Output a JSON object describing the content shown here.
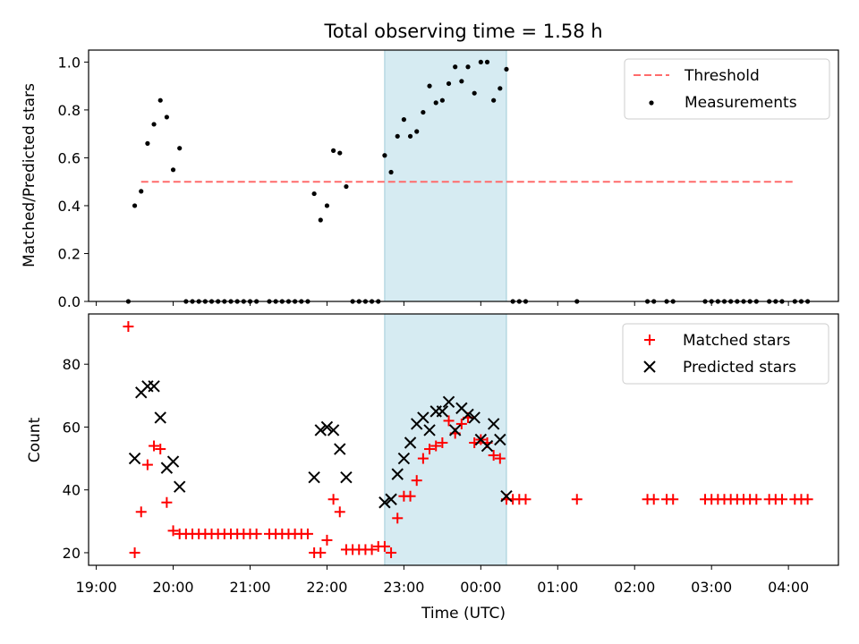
{
  "chart_data": [
    {
      "type": "scatter",
      "title": "Total observing time = 1.58 h",
      "xlabel": "",
      "ylabel": "Matched/Predicted stars",
      "ylim": [
        0,
        1.05
      ],
      "yticks": [
        "0.0",
        "0.2",
        "0.4",
        "0.6",
        "0.8",
        "1.0"
      ],
      "ytick_values": [
        0,
        0.2,
        0.4,
        0.6,
        0.8,
        1.0
      ],
      "shaded_interval": [
        "22:45",
        "00:20"
      ],
      "legend_position": "upper right",
      "threshold": {
        "name": "Threshold",
        "value": 0.5,
        "x_range": [
          "19:35",
          "04:05"
        ],
        "color": "#ff6b6b"
      },
      "series": [
        {
          "name": "Measurements",
          "color": "#000000",
          "points": [
            [
              "19:25",
              0.0
            ],
            [
              "19:30",
              0.4
            ],
            [
              "19:35",
              0.46
            ],
            [
              "19:40",
              0.66
            ],
            [
              "19:45",
              0.74
            ],
            [
              "19:50",
              0.84
            ],
            [
              "19:55",
              0.77
            ],
            [
              "20:00",
              0.55
            ],
            [
              "20:05",
              0.64
            ],
            [
              "20:10",
              0.0
            ],
            [
              "20:15",
              0.0
            ],
            [
              "20:20",
              0.0
            ],
            [
              "20:25",
              0.0
            ],
            [
              "20:30",
              0.0
            ],
            [
              "20:35",
              0.0
            ],
            [
              "20:40",
              0.0
            ],
            [
              "20:45",
              0.0
            ],
            [
              "20:50",
              0.0
            ],
            [
              "20:55",
              0.0
            ],
            [
              "21:00",
              0.0
            ],
            [
              "21:05",
              0.0
            ],
            [
              "21:15",
              0.0
            ],
            [
              "21:20",
              0.0
            ],
            [
              "21:25",
              0.0
            ],
            [
              "21:30",
              0.0
            ],
            [
              "21:35",
              0.0
            ],
            [
              "21:40",
              0.0
            ],
            [
              "21:45",
              0.0
            ],
            [
              "21:50",
              0.45
            ],
            [
              "21:55",
              0.34
            ],
            [
              "22:00",
              0.4
            ],
            [
              "22:05",
              0.63
            ],
            [
              "22:10",
              0.62
            ],
            [
              "22:15",
              0.48
            ],
            [
              "22:20",
              0.0
            ],
            [
              "22:25",
              0.0
            ],
            [
              "22:30",
              0.0
            ],
            [
              "22:35",
              0.0
            ],
            [
              "22:40",
              0.0
            ],
            [
              "22:45",
              0.61
            ],
            [
              "22:50",
              0.54
            ],
            [
              "22:55",
              0.69
            ],
            [
              "23:00",
              0.76
            ],
            [
              "23:05",
              0.69
            ],
            [
              "23:10",
              0.71
            ],
            [
              "23:15",
              0.79
            ],
            [
              "23:20",
              0.9
            ],
            [
              "23:25",
              0.83
            ],
            [
              "23:30",
              0.84
            ],
            [
              "23:35",
              0.91
            ],
            [
              "23:40",
              0.98
            ],
            [
              "23:45",
              0.92
            ],
            [
              "23:50",
              0.98
            ],
            [
              "23:55",
              0.87
            ],
            [
              "00:00",
              1.0
            ],
            [
              "00:05",
              1.0
            ],
            [
              "00:10",
              0.84
            ],
            [
              "00:15",
              0.89
            ],
            [
              "00:20",
              0.97
            ],
            [
              "00:25",
              0.0
            ],
            [
              "00:30",
              0.0
            ],
            [
              "00:35",
              0.0
            ],
            [
              "01:15",
              0.0
            ],
            [
              "02:10",
              0.0
            ],
            [
              "02:15",
              0.0
            ],
            [
              "02:25",
              0.0
            ],
            [
              "02:30",
              0.0
            ],
            [
              "02:55",
              0.0
            ],
            [
              "03:00",
              0.0
            ],
            [
              "03:05",
              0.0
            ],
            [
              "03:10",
              0.0
            ],
            [
              "03:15",
              0.0
            ],
            [
              "03:20",
              0.0
            ],
            [
              "03:25",
              0.0
            ],
            [
              "03:30",
              0.0
            ],
            [
              "03:35",
              0.0
            ],
            [
              "03:45",
              0.0
            ],
            [
              "03:50",
              0.0
            ],
            [
              "03:55",
              0.0
            ],
            [
              "04:05",
              0.0
            ],
            [
              "04:10",
              0.0
            ],
            [
              "04:15",
              0.0
            ]
          ]
        }
      ]
    },
    {
      "type": "scatter",
      "title": "",
      "xlabel": "Time (UTC)",
      "ylabel": "Count",
      "ylim": [
        16,
        96
      ],
      "yticks": [
        "20",
        "40",
        "60",
        "80"
      ],
      "ytick_values": [
        20,
        40,
        60,
        80
      ],
      "xticks": [
        "19:00",
        "20:00",
        "21:00",
        "22:00",
        "23:00",
        "00:00",
        "01:00",
        "02:00",
        "03:00",
        "04:00"
      ],
      "shaded_interval": [
        "22:45",
        "00:20"
      ],
      "legend_position": "upper right",
      "series": [
        {
          "name": "Matched stars",
          "marker": "+",
          "color": "#ff0000",
          "points": [
            [
              "19:25",
              92
            ],
            [
              "19:30",
              20
            ],
            [
              "19:35",
              33
            ],
            [
              "19:40",
              48
            ],
            [
              "19:45",
              54
            ],
            [
              "19:50",
              53
            ],
            [
              "19:55",
              36
            ],
            [
              "20:00",
              27
            ],
            [
              "20:05",
              26
            ],
            [
              "20:10",
              26
            ],
            [
              "20:15",
              26
            ],
            [
              "20:20",
              26
            ],
            [
              "20:25",
              26
            ],
            [
              "20:30",
              26
            ],
            [
              "20:35",
              26
            ],
            [
              "20:40",
              26
            ],
            [
              "20:45",
              26
            ],
            [
              "20:50",
              26
            ],
            [
              "20:55",
              26
            ],
            [
              "21:00",
              26
            ],
            [
              "21:05",
              26
            ],
            [
              "21:15",
              26
            ],
            [
              "21:20",
              26
            ],
            [
              "21:25",
              26
            ],
            [
              "21:30",
              26
            ],
            [
              "21:35",
              26
            ],
            [
              "21:40",
              26
            ],
            [
              "21:45",
              26
            ],
            [
              "21:50",
              20
            ],
            [
              "21:55",
              20
            ],
            [
              "22:00",
              24
            ],
            [
              "22:05",
              37
            ],
            [
              "22:10",
              33
            ],
            [
              "22:15",
              21
            ],
            [
              "22:20",
              21
            ],
            [
              "22:25",
              21
            ],
            [
              "22:30",
              21
            ],
            [
              "22:35",
              21
            ],
            [
              "22:40",
              22
            ],
            [
              "22:45",
              22
            ],
            [
              "22:50",
              20
            ],
            [
              "22:55",
              31
            ],
            [
              "23:00",
              38
            ],
            [
              "23:05",
              38
            ],
            [
              "23:10",
              43
            ],
            [
              "23:15",
              50
            ],
            [
              "23:20",
              53
            ],
            [
              "23:25",
              54
            ],
            [
              "23:30",
              55
            ],
            [
              "23:35",
              62
            ],
            [
              "23:40",
              58
            ],
            [
              "23:45",
              61
            ],
            [
              "23:50",
              63
            ],
            [
              "23:55",
              55
            ],
            [
              "00:00",
              56
            ],
            [
              "00:05",
              55
            ],
            [
              "00:10",
              51
            ],
            [
              "00:15",
              50
            ],
            [
              "00:20",
              37
            ],
            [
              "00:25",
              37
            ],
            [
              "00:30",
              37
            ],
            [
              "00:35",
              37
            ],
            [
              "01:15",
              37
            ],
            [
              "02:10",
              37
            ],
            [
              "02:15",
              37
            ],
            [
              "02:25",
              37
            ],
            [
              "02:30",
              37
            ],
            [
              "02:55",
              37
            ],
            [
              "03:00",
              37
            ],
            [
              "03:05",
              37
            ],
            [
              "03:10",
              37
            ],
            [
              "03:15",
              37
            ],
            [
              "03:20",
              37
            ],
            [
              "03:25",
              37
            ],
            [
              "03:30",
              37
            ],
            [
              "03:35",
              37
            ],
            [
              "03:45",
              37
            ],
            [
              "03:50",
              37
            ],
            [
              "03:55",
              37
            ],
            [
              "04:05",
              37
            ],
            [
              "04:10",
              37
            ],
            [
              "04:15",
              37
            ]
          ]
        },
        {
          "name": "Predicted stars",
          "marker": "x",
          "color": "#000000",
          "points": [
            [
              "19:30",
              50
            ],
            [
              "19:35",
              71
            ],
            [
              "19:40",
              73
            ],
            [
              "19:45",
              73
            ],
            [
              "19:50",
              63
            ],
            [
              "19:55",
              47
            ],
            [
              "20:00",
              49
            ],
            [
              "20:05",
              41
            ],
            [
              "21:50",
              44
            ],
            [
              "21:55",
              59
            ],
            [
              "22:00",
              60
            ],
            [
              "22:05",
              59
            ],
            [
              "22:10",
              53
            ],
            [
              "22:15",
              44
            ],
            [
              "22:45",
              36
            ],
            [
              "22:50",
              37
            ],
            [
              "22:55",
              45
            ],
            [
              "23:00",
              50
            ],
            [
              "23:05",
              55
            ],
            [
              "23:10",
              61
            ],
            [
              "23:15",
              63
            ],
            [
              "23:20",
              59
            ],
            [
              "23:25",
              65
            ],
            [
              "23:30",
              65
            ],
            [
              "23:35",
              68
            ],
            [
              "23:40",
              59
            ],
            [
              "23:45",
              66
            ],
            [
              "23:50",
              64
            ],
            [
              "23:55",
              63
            ],
            [
              "00:00",
              56
            ],
            [
              "00:05",
              54
            ],
            [
              "00:10",
              61
            ],
            [
              "00:15",
              56
            ],
            [
              "00:20",
              38
            ]
          ]
        }
      ]
    }
  ]
}
